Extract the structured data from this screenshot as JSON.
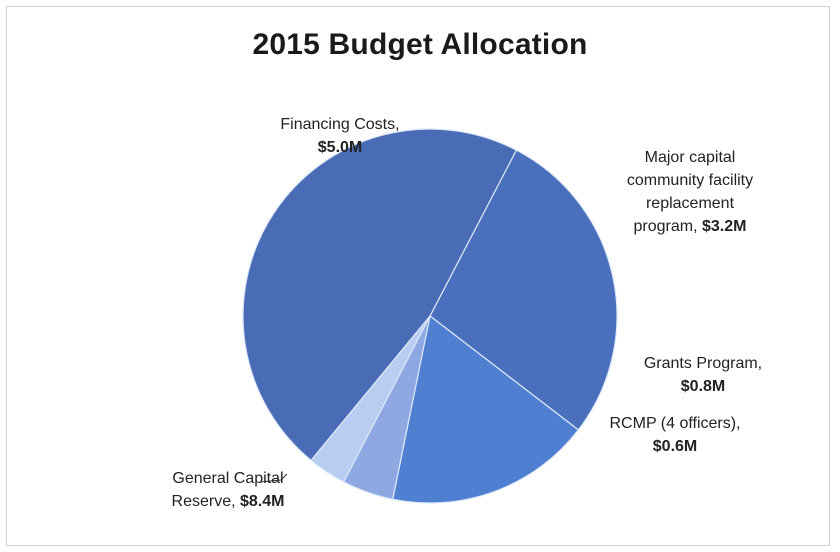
{
  "chart_data": {
    "type": "pie",
    "title": "2015 Budget Allocation",
    "slices": [
      {
        "name": "Financing Costs,",
        "value": 5.0,
        "value_label": "$5.0M"
      },
      {
        "name": "Major capital community facility replacement program,",
        "value": 3.2,
        "value_label": "$3.2M"
      },
      {
        "name": "Grants Program,",
        "value": 0.8,
        "value_label": "$0.8M"
      },
      {
        "name": "RCMP (4 officers),",
        "value": 0.6,
        "value_label": "$0.6M"
      },
      {
        "name": "General Capital Reserve,",
        "value": 8.4,
        "value_label": "$8.4M"
      }
    ],
    "colors": [
      "#4a6fbd",
      "#4f7fd0",
      "#8ea8e2",
      "#b7cdf2",
      "#4a6bb6"
    ],
    "legend": "none"
  }
}
